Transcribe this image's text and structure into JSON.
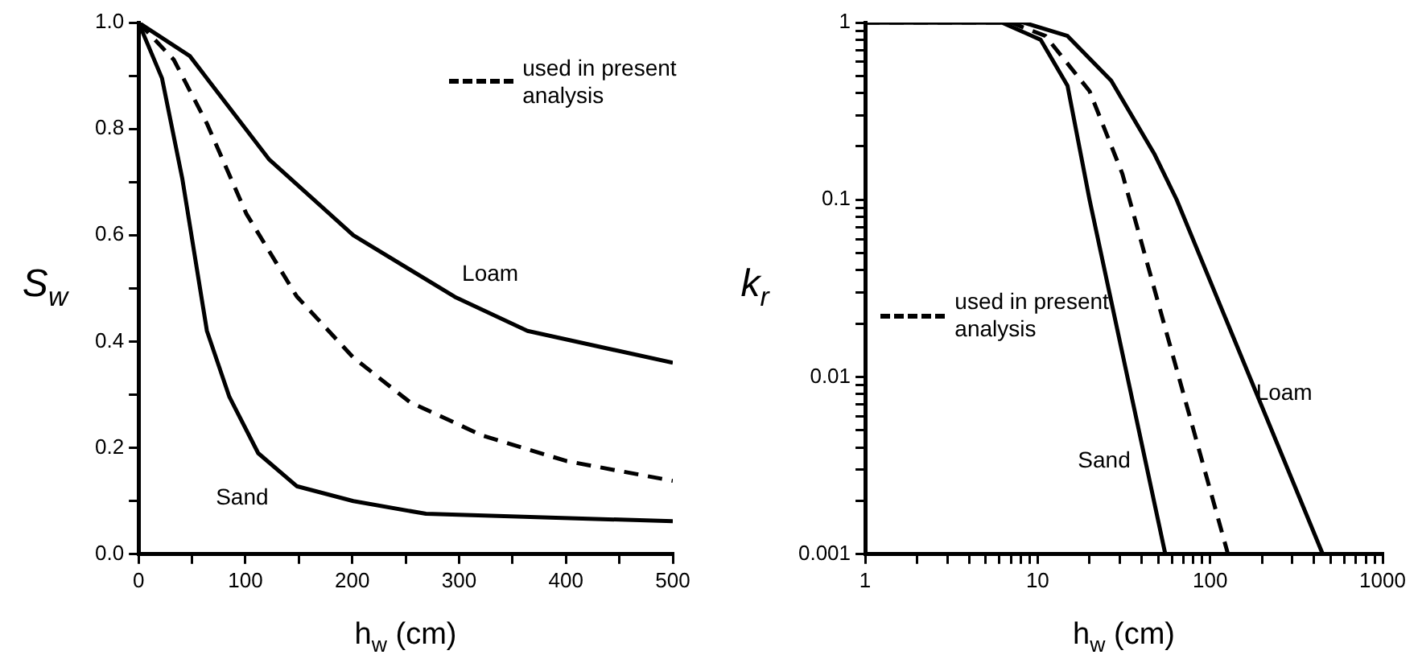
{
  "chart_data": [
    {
      "type": "line",
      "xlabel": "h$_{w}$ (cm)",
      "ylabel": "S$_{w}$",
      "xlim": [
        0,
        500
      ],
      "ylim": [
        0,
        1
      ],
      "xticks": [
        0,
        {
          "value": 50,
          "label": null
        },
        100,
        {
          "value": 150,
          "label": null
        },
        200,
        {
          "value": 250,
          "label": null
        },
        300,
        {
          "value": 350,
          "label": null
        },
        400,
        {
          "value": 450,
          "label": null
        },
        500
      ],
      "yticks": [
        {
          "value": 0,
          "label": "0.0"
        },
        {
          "value": 0.1,
          "label": null
        },
        {
          "value": 0.2,
          "label": "0.2"
        },
        {
          "value": 0.3,
          "label": null
        },
        {
          "value": 0.4,
          "label": "0.4"
        },
        {
          "value": 0.5,
          "label": null
        },
        {
          "value": 0.6,
          "label": "0.6"
        },
        {
          "value": 0.7,
          "label": null
        },
        {
          "value": 0.8,
          "label": "0.8"
        },
        {
          "value": 0.9,
          "label": null
        },
        {
          "value": 1,
          "label": "1.0"
        }
      ],
      "grid": false,
      "legend": "top right",
      "marker": "none",
      "series": [
        {
          "name": "Loam",
          "color": "#000000",
          "line_style": "solid",
          "x": [
            0,
            48,
            122,
            201,
            296,
            364,
            500
          ],
          "values": [
            1,
            0.937,
            0.743,
            0.6,
            0.484,
            0.42,
            0.36
          ]
        },
        {
          "name": "used in present analysis",
          "color": "#000000",
          "line_style": "dashed",
          "x": [
            0,
            33,
            64,
            101,
            148,
            201,
            254,
            322,
            401,
            500
          ],
          "values": [
            1,
            0.93,
            0.81,
            0.64,
            0.485,
            0.37,
            0.286,
            0.223,
            0.175,
            0.138
          ]
        },
        {
          "name": "Sand",
          "color": "#000000",
          "line_style": "solid",
          "x": [
            0,
            22,
            41,
            64,
            85,
            112,
            148,
            201,
            269,
            500
          ],
          "values": [
            1,
            0.895,
            0.706,
            0.42,
            0.296,
            0.19,
            0.128,
            0.1,
            0.076,
            0.062
          ]
        }
      ]
    },
    {
      "type": "line",
      "xlabel": "h$_{w}$ (cm)",
      "ylabel": "k$_{r}$",
      "log": "xy",
      "xlim": [
        1,
        1000
      ],
      "ylim": [
        0.001,
        1
      ],
      "xticks": [
        1,
        {
          "value": 2,
          "label": null
        },
        {
          "value": 3,
          "label": null
        },
        {
          "value": 4,
          "label": null
        },
        {
          "value": 5,
          "label": null
        },
        {
          "value": 6,
          "label": null
        },
        {
          "value": 7,
          "label": null
        },
        {
          "value": 8,
          "label": null
        },
        {
          "value": 9,
          "label": null
        },
        10,
        {
          "value": 20,
          "label": null
        },
        {
          "value": 30,
          "label": null
        },
        {
          "value": 40,
          "label": null
        },
        {
          "value": 50,
          "label": null
        },
        {
          "value": 60,
          "label": null
        },
        {
          "value": 70,
          "label": null
        },
        {
          "value": 80,
          "label": null
        },
        {
          "value": 90,
          "label": null
        },
        100,
        {
          "value": 200,
          "label": null
        },
        {
          "value": 300,
          "label": null
        },
        {
          "value": 400,
          "label": null
        },
        {
          "value": 500,
          "label": null
        },
        {
          "value": 600,
          "label": null
        },
        {
          "value": 700,
          "label": null
        },
        {
          "value": 800,
          "label": null
        },
        {
          "value": 900,
          "label": null
        },
        1000
      ],
      "yticks": [
        0.001,
        {
          "value": 0.002,
          "label": null
        },
        {
          "value": 0.003,
          "label": null
        },
        {
          "value": 0.004,
          "label": null
        },
        {
          "value": 0.005,
          "label": null
        },
        {
          "value": 0.006,
          "label": null
        },
        {
          "value": 0.007,
          "label": null
        },
        {
          "value": 0.008,
          "label": null
        },
        {
          "value": 0.009,
          "label": null
        },
        0.01,
        {
          "value": 0.02,
          "label": null
        },
        {
          "value": 0.03,
          "label": null
        },
        {
          "value": 0.04,
          "label": null
        },
        {
          "value": 0.05,
          "label": null
        },
        {
          "value": 0.06,
          "label": null
        },
        {
          "value": 0.07,
          "label": null
        },
        {
          "value": 0.08,
          "label": null
        },
        {
          "value": 0.09,
          "label": null
        },
        0.1,
        {
          "value": 0.2,
          "label": null
        },
        {
          "value": 0.3,
          "label": null
        },
        {
          "value": 0.4,
          "label": null
        },
        {
          "value": 0.5,
          "label": null
        },
        {
          "value": 0.6,
          "label": null
        },
        {
          "value": 0.7,
          "label": null
        },
        {
          "value": 0.8,
          "label": null
        },
        {
          "value": 0.9,
          "label": null
        },
        1
      ],
      "grid": false,
      "legend": "left",
      "marker": "none",
      "series": [
        {
          "name": "Sand",
          "color": "#000000",
          "line_style": "solid",
          "x": [
            1,
            6.2,
            10.4,
            14.9,
            20,
            55
          ],
          "values": [
            1,
            1,
            0.8,
            0.44,
            0.1,
            0.001
          ]
        },
        {
          "name": "used in present analysis",
          "color": "#000000",
          "line_style": "dashed",
          "x": [
            1,
            7,
            11.1,
            20,
            31,
            127
          ],
          "values": [
            1,
            1,
            0.84,
            0.41,
            0.14,
            0.001
          ]
        },
        {
          "name": "Loam",
          "color": "#000000",
          "line_style": "solid",
          "x": [
            1,
            8.3,
            14.9,
            26.7,
            47.7,
            64,
            450
          ],
          "values": [
            1,
            1,
            0.84,
            0.47,
            0.18,
            0.1,
            0.001
          ]
        }
      ]
    }
  ]
}
